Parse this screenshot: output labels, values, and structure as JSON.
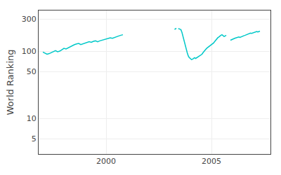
{
  "chart_data": {
    "type": "line",
    "ylabel": "World Ranking",
    "log": "y",
    "grid": true,
    "xlim": [
      1996.8,
      2007.8
    ],
    "xticks": [
      2000,
      2005
    ],
    "ylim": [
      3,
      400
    ],
    "yticks": [
      5,
      10,
      50,
      100,
      300
    ],
    "series": [
      {
        "color": "#00c8c8",
        "line_style": "solid",
        "x": [
          1997.0,
          1997.1,
          1997.2,
          1997.3,
          1997.4,
          1997.5,
          1997.6,
          1997.7,
          1997.8,
          1997.9,
          1998.0,
          1998.1,
          1998.2,
          1998.3,
          1998.4,
          1998.5,
          1998.6,
          1998.7,
          1998.8,
          1998.9,
          1999.0,
          1999.1,
          1999.2,
          1999.3,
          1999.4,
          1999.5,
          1999.6,
          1999.7,
          1999.8,
          1999.9,
          2000.0,
          2000.1,
          2000.2,
          2000.3,
          2000.4,
          2000.5,
          2000.6,
          2000.7,
          2000.8
        ],
        "values": [
          97,
          93,
          90,
          92,
          95,
          100,
          102,
          98,
          100,
          105,
          110,
          108,
          112,
          118,
          122,
          125,
          128,
          130,
          125,
          128,
          132,
          135,
          138,
          135,
          140,
          142,
          138,
          142,
          145,
          148,
          150,
          153,
          158,
          155,
          160,
          165,
          168,
          172,
          175
        ]
      },
      {
        "color": "#00c8c8",
        "line_style": "dotted",
        "x": [
          2003.25,
          2003.3,
          2003.35,
          2003.4,
          2003.45,
          2003.5
        ],
        "values": [
          210,
          215,
          220,
          218,
          215,
          212
        ]
      },
      {
        "color": "#00c8c8",
        "line_style": "solid",
        "x": [
          2003.5,
          2003.55,
          2003.6,
          2003.65,
          2003.7,
          2003.75,
          2003.8,
          2003.85,
          2003.9,
          2003.95,
          2004.0,
          2004.05,
          2004.1,
          2004.15,
          2004.2,
          2004.25,
          2004.3,
          2004.35,
          2004.4,
          2004.5,
          2004.55,
          2004.6,
          2004.65,
          2004.7,
          2004.75,
          2004.8,
          2004.85,
          2004.9,
          2004.95,
          2005.0,
          2005.05,
          2005.1,
          2005.15,
          2005.2,
          2005.25,
          2005.3,
          2005.35,
          2005.4,
          2005.45,
          2005.5,
          2005.55,
          2005.6,
          2005.65,
          2005.7
        ],
        "values": [
          212,
          208,
          190,
          165,
          140,
          120,
          105,
          95,
          85,
          80,
          78,
          75,
          76,
          78,
          80,
          78,
          80,
          82,
          85,
          88,
          90,
          95,
          100,
          105,
          108,
          112,
          115,
          118,
          122,
          125,
          128,
          132,
          138,
          145,
          150,
          158,
          162,
          168,
          172,
          175,
          170,
          165,
          168,
          172
        ]
      },
      {
        "color": "#00c8c8",
        "line_style": "solid",
        "x": [
          2005.9,
          2005.95,
          2006.0,
          2006.05,
          2006.1,
          2006.15,
          2006.2,
          2006.25,
          2006.3,
          2006.35,
          2006.4,
          2006.45,
          2006.5,
          2006.55,
          2006.6,
          2006.65,
          2006.7,
          2006.75,
          2006.8,
          2006.85,
          2006.9,
          2006.95,
          2007.0,
          2007.05,
          2007.1,
          2007.15,
          2007.2,
          2007.25,
          2007.3
        ],
        "values": [
          145,
          148,
          150,
          152,
          155,
          157,
          158,
          160,
          162,
          160,
          163,
          165,
          168,
          170,
          172,
          175,
          178,
          180,
          182,
          185,
          183,
          185,
          188,
          190,
          192,
          195,
          192,
          195,
          198
        ]
      }
    ]
  }
}
